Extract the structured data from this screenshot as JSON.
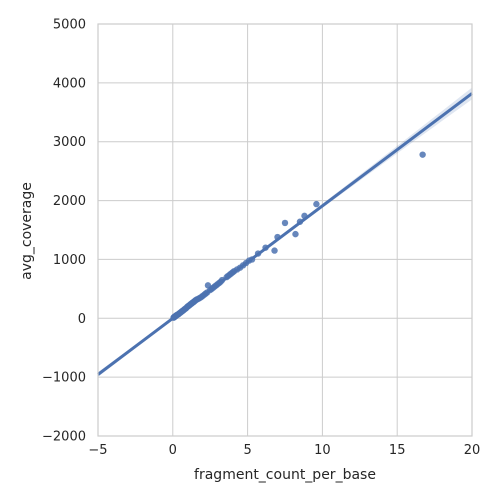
{
  "chart_data": {
    "type": "scatter",
    "xlabel": "fragment_count_per_base",
    "ylabel": "avg_coverage",
    "xlim": [
      -5,
      20
    ],
    "ylim": [
      -2000,
      5000
    ],
    "x_ticks": [
      -5,
      0,
      5,
      10,
      15,
      20
    ],
    "x_tick_labels": [
      "−5",
      "0",
      "5",
      "10",
      "15",
      "20"
    ],
    "y_ticks": [
      -2000,
      -1000,
      0,
      1000,
      2000,
      3000,
      4000,
      5000
    ],
    "y_tick_labels": [
      "−2000",
      "−1000",
      "0",
      "1000",
      "2000",
      "3000",
      "4000",
      "5000"
    ],
    "grid": true,
    "colors": {
      "points": "#4c72b0",
      "line": "#4c72b0",
      "band": "#4c72b0",
      "grid": "#cccccc"
    },
    "regression": {
      "slope": 191,
      "intercept": 0,
      "ci_halfwidth_at_edges": 100
    },
    "points": {
      "x": [
        0.05,
        0.08,
        0.1,
        0.12,
        0.15,
        0.18,
        0.2,
        0.22,
        0.25,
        0.28,
        0.3,
        0.35,
        0.4,
        0.45,
        0.5,
        0.55,
        0.6,
        0.65,
        0.7,
        0.75,
        0.8,
        0.85,
        0.9,
        0.95,
        1.0,
        1.05,
        1.1,
        1.15,
        1.2,
        1.25,
        1.3,
        1.35,
        1.4,
        1.45,
        1.5,
        1.55,
        1.6,
        1.7,
        1.8,
        1.9,
        2.0,
        2.1,
        2.2,
        2.3,
        2.35,
        2.5,
        2.6,
        2.7,
        2.8,
        2.9,
        3.0,
        3.1,
        3.2,
        3.3,
        3.6,
        3.7,
        3.8,
        3.9,
        4.0,
        4.1,
        4.3,
        4.5,
        4.7,
        4.9,
        5.1,
        5.3,
        5.7,
        6.2,
        6.8,
        7.0,
        7.5,
        8.2,
        8.5,
        8.8,
        9.6,
        16.7
      ],
      "y": [
        10,
        20,
        20,
        25,
        30,
        35,
        40,
        45,
        50,
        55,
        60,
        65,
        75,
        85,
        95,
        105,
        115,
        125,
        135,
        145,
        155,
        165,
        175,
        190,
        200,
        210,
        220,
        230,
        240,
        250,
        260,
        270,
        280,
        290,
        300,
        310,
        320,
        330,
        345,
        360,
        380,
        400,
        420,
        440,
        560,
        480,
        500,
        520,
        540,
        560,
        580,
        600,
        620,
        650,
        700,
        720,
        740,
        760,
        780,
        800,
        830,
        860,
        900,
        940,
        980,
        1000,
        1100,
        1200,
        1150,
        1380,
        1620,
        1430,
        1640,
        1740,
        1940,
        2780
      ]
    }
  }
}
